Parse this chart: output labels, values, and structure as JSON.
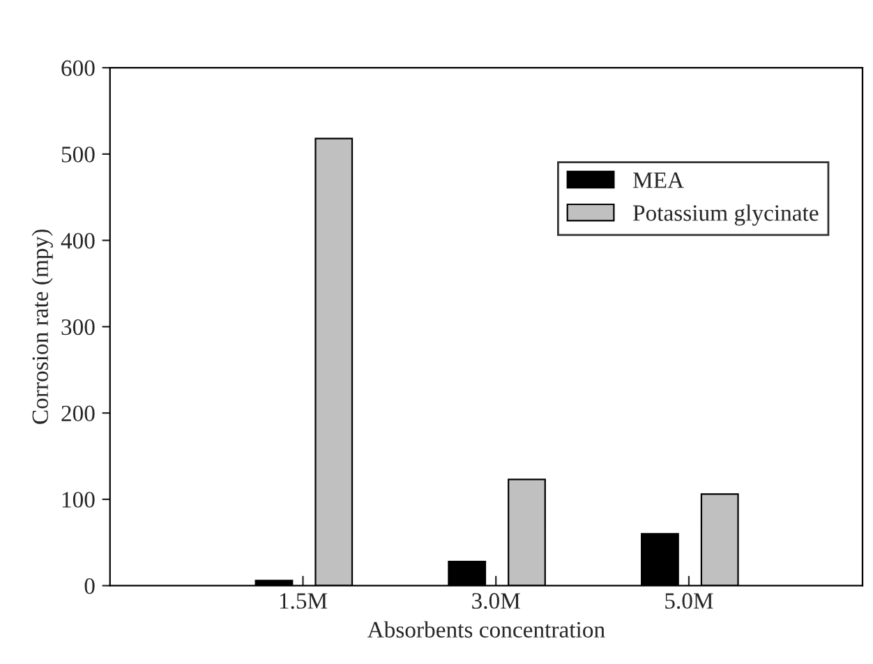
{
  "chart_data": {
    "type": "bar",
    "xlabel": "Absorbents concentration",
    "ylabel": "Corrosion rate (mpy)",
    "categories": [
      "1.5M",
      "3.0M",
      "5.0M"
    ],
    "series": [
      {
        "name": "MEA",
        "color": "#000000",
        "values": [
          6,
          28,
          60
        ]
      },
      {
        "name": "Potassium glycinate",
        "color": "#c0c0c0",
        "values": [
          518,
          123,
          106
        ]
      }
    ],
    "ylim": [
      0,
      600
    ],
    "yticks": [
      0,
      100,
      200,
      300,
      400,
      500,
      600
    ],
    "grid": false,
    "legend": "top right"
  }
}
